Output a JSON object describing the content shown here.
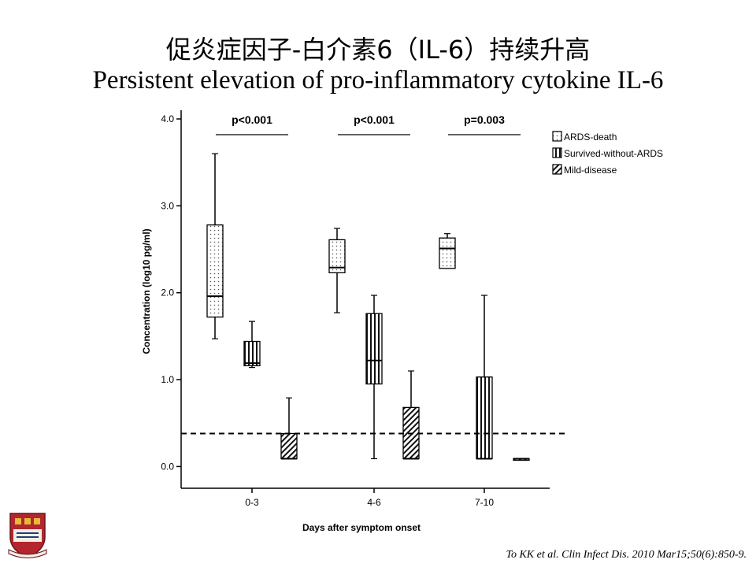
{
  "slide": {
    "title_cn": "促炎症因子-白介素6（IL-6）持续升高",
    "title_en": "Persistent elevation of pro-inflammatory cytokine IL-6",
    "citation": "To KK et al. Clin Infect Dis. 2010 Mar15;50(6):850-9."
  },
  "chart_data": {
    "type": "box",
    "xlabel": "Days after symptom onset",
    "ylabel": "Concentration (log10 pg/ml)",
    "ylim": [
      -0.25,
      4.1
    ],
    "yticks": [
      "0.0",
      "1.0",
      "2.0",
      "3.0",
      "4.0"
    ],
    "categories": [
      "0-3",
      "4-6",
      "7-10"
    ],
    "reference_line": 0.38,
    "pvalues": [
      "p<0.001",
      "p<0.001",
      "p=0.003"
    ],
    "series": [
      {
        "name": "ARDS-death",
        "pattern": "dots",
        "boxes": [
          {
            "min": 1.47,
            "q1": 1.72,
            "median": 1.96,
            "q3": 2.78,
            "max": 3.6
          },
          {
            "min": 1.77,
            "q1": 2.23,
            "median": 2.29,
            "q3": 2.61,
            "max": 2.74
          },
          {
            "min": 2.28,
            "q1": 2.28,
            "median": 2.51,
            "q3": 2.63,
            "max": 2.68
          }
        ]
      },
      {
        "name": "Survived-without-ARDS",
        "pattern": "vertical",
        "boxes": [
          {
            "min": 1.14,
            "q1": 1.16,
            "median": 1.19,
            "q3": 1.44,
            "max": 1.67
          },
          {
            "min": 0.09,
            "q1": 0.95,
            "median": 1.22,
            "q3": 1.76,
            "max": 1.97
          },
          {
            "min": 0.09,
            "q1": 0.09,
            "median": 0.09,
            "q3": 1.03,
            "max": 1.97
          }
        ]
      },
      {
        "name": "Mild-disease",
        "pattern": "diagonal",
        "boxes": [
          {
            "min": 0.09,
            "q1": 0.09,
            "median": 0.09,
            "q3": 0.38,
            "max": 0.79
          },
          {
            "min": 0.09,
            "q1": 0.09,
            "median": 0.09,
            "q3": 0.68,
            "max": 1.1
          },
          {
            "min": 0.09,
            "q1": 0.09,
            "median": 0.09,
            "q3": 0.09,
            "max": 0.09
          }
        ]
      }
    ],
    "legend": {
      "placement": "top-right",
      "entries": [
        "ARDS-death",
        "Survived-without-ARDS",
        "Mild-disease"
      ]
    }
  }
}
